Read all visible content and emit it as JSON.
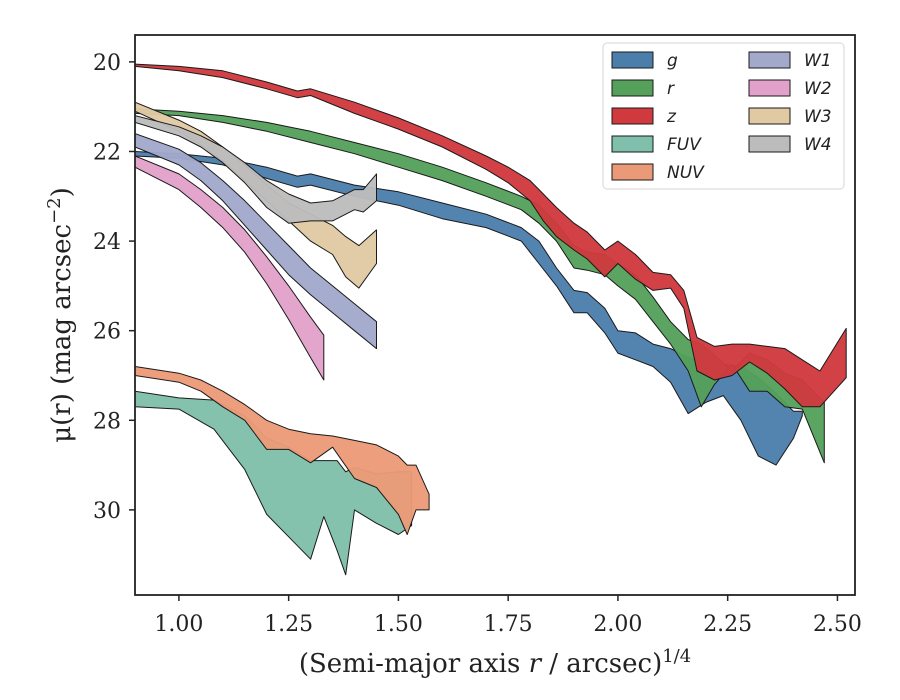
{
  "chart_data": {
    "type": "area",
    "xlabel_text": "(Semi-major axis ",
    "xlabel_var": "r",
    "xlabel_unit": " / arcsec)",
    "xlabel_exp": "1/4",
    "ylabel_text": "μ(r) (mag arcsec",
    "ylabel_exp": "−2",
    "ylabel_close": ")",
    "xlim": [
      0.9,
      2.54
    ],
    "ylim": [
      31.9,
      19.4
    ],
    "y_inverted": true,
    "xticks": [
      1.0,
      1.25,
      1.5,
      1.75,
      2.0,
      2.25,
      2.5
    ],
    "xtick_labels": [
      "1.00",
      "1.25",
      "1.50",
      "1.75",
      "2.00",
      "2.25",
      "2.50"
    ],
    "yticks": [
      20,
      22,
      24,
      26,
      28,
      30
    ],
    "ytick_labels": [
      "20",
      "22",
      "24",
      "26",
      "28",
      "30"
    ],
    "legend_position": "top-right",
    "legend_columns": 2,
    "series": [
      {
        "name": "g",
        "color": "#4c7eac",
        "x": [
          0.9,
          1.0,
          1.1,
          1.2,
          1.27,
          1.3,
          1.4,
          1.5,
          1.6,
          1.7,
          1.78,
          1.82,
          1.86,
          1.9,
          1.93,
          1.97,
          2.0,
          2.04,
          2.08,
          2.12,
          2.16,
          2.2,
          2.24,
          2.28,
          2.32,
          2.36,
          2.4,
          2.42
        ],
        "y_upper": [
          22.0,
          22.05,
          22.15,
          22.35,
          22.55,
          22.5,
          22.75,
          22.9,
          23.15,
          23.4,
          23.7,
          24.0,
          24.6,
          25.1,
          25.15,
          25.5,
          26.0,
          26.05,
          26.3,
          26.4,
          26.6,
          26.7,
          26.75,
          26.8,
          27.05,
          27.4,
          27.8,
          27.8
        ],
        "y_lower": [
          22.1,
          22.15,
          22.3,
          22.6,
          22.8,
          22.75,
          23.0,
          23.2,
          23.5,
          23.7,
          24.0,
          24.5,
          25.0,
          25.6,
          25.6,
          26.05,
          26.5,
          26.65,
          26.8,
          27.15,
          27.85,
          27.6,
          27.45,
          28.0,
          28.8,
          29.0,
          28.4,
          27.9
        ]
      },
      {
        "name": "r",
        "color": "#55a05b",
        "x": [
          0.9,
          1.0,
          1.1,
          1.2,
          1.3,
          1.4,
          1.5,
          1.6,
          1.7,
          1.78,
          1.82,
          1.86,
          1.9,
          1.93,
          1.97,
          2.0,
          2.04,
          2.08,
          2.12,
          2.16,
          2.19,
          2.22,
          2.26,
          2.3,
          2.34,
          2.38,
          2.42,
          2.47
        ],
        "y_upper": [
          21.05,
          21.1,
          21.2,
          21.35,
          21.55,
          21.8,
          22.05,
          22.35,
          22.7,
          23.0,
          23.2,
          23.6,
          24.1,
          24.25,
          24.3,
          24.5,
          24.75,
          25.25,
          25.8,
          26.2,
          26.3,
          26.55,
          26.9,
          26.5,
          26.65,
          26.95,
          27.1,
          27.6
        ],
        "y_lower": [
          21.15,
          21.2,
          21.35,
          21.55,
          21.8,
          22.05,
          22.35,
          22.65,
          23.0,
          23.3,
          23.6,
          24.0,
          24.6,
          24.65,
          24.75,
          25.0,
          25.3,
          25.8,
          26.3,
          26.9,
          27.7,
          27.2,
          26.75,
          27.35,
          27.35,
          27.7,
          27.75,
          28.95
        ]
      },
      {
        "name": "z",
        "color": "#d0393d",
        "x": [
          0.9,
          1.0,
          1.1,
          1.2,
          1.27,
          1.3,
          1.4,
          1.5,
          1.6,
          1.7,
          1.75,
          1.8,
          1.83,
          1.86,
          1.9,
          1.93,
          1.97,
          2.0,
          2.04,
          2.08,
          2.12,
          2.15,
          2.18,
          2.22,
          2.26,
          2.3,
          2.34,
          2.38,
          2.42,
          2.46,
          2.52
        ],
        "y_upper": [
          20.05,
          20.1,
          20.2,
          20.45,
          20.65,
          20.6,
          20.9,
          21.25,
          21.65,
          22.1,
          22.35,
          22.65,
          22.95,
          23.25,
          23.6,
          23.8,
          24.2,
          24.0,
          24.3,
          24.7,
          24.75,
          25.1,
          26.15,
          26.35,
          26.3,
          26.3,
          26.35,
          26.4,
          26.65,
          26.9,
          25.95
        ],
        "y_lower": [
          20.1,
          20.2,
          20.35,
          20.6,
          20.8,
          20.75,
          21.15,
          21.5,
          21.9,
          22.4,
          22.7,
          23.1,
          23.55,
          23.9,
          24.2,
          24.4,
          24.8,
          24.5,
          24.85,
          25.1,
          25.05,
          25.5,
          26.9,
          27.1,
          27.0,
          26.7,
          26.95,
          27.3,
          27.7,
          27.7,
          27.05
        ]
      },
      {
        "name": "FUV",
        "color": "#7fbfab",
        "x": [
          0.9,
          1.0,
          1.08,
          1.15,
          1.2,
          1.25,
          1.3,
          1.33,
          1.36,
          1.38,
          1.4,
          1.45,
          1.5,
          1.53
        ],
        "y_upper": [
          27.35,
          27.5,
          27.55,
          27.9,
          28.4,
          28.6,
          28.9,
          28.9,
          28.9,
          29.15,
          29.05,
          29.2,
          29.15,
          29.15
        ],
        "y_lower": [
          27.7,
          27.75,
          28.2,
          29.1,
          30.1,
          30.6,
          31.1,
          30.15,
          30.9,
          31.45,
          30.0,
          30.3,
          30.55,
          30.35
        ]
      },
      {
        "name": "NUV",
        "color": "#eb9a78",
        "x": [
          0.9,
          1.0,
          1.05,
          1.1,
          1.15,
          1.2,
          1.25,
          1.3,
          1.35,
          1.4,
          1.45,
          1.5,
          1.52,
          1.54,
          1.57
        ],
        "y_upper": [
          26.8,
          26.95,
          27.1,
          27.35,
          27.65,
          28.0,
          28.2,
          28.3,
          28.35,
          28.45,
          28.55,
          28.8,
          29.0,
          29.0,
          29.65
        ],
        "y_lower": [
          27.0,
          27.15,
          27.35,
          27.7,
          28.0,
          28.65,
          28.65,
          28.95,
          28.6,
          29.3,
          29.5,
          30.1,
          30.55,
          30.0,
          30.0
        ]
      },
      {
        "name": "W1",
        "color": "#a2a9cb",
        "x": [
          0.9,
          1.0,
          1.05,
          1.1,
          1.15,
          1.2,
          1.25,
          1.3,
          1.35,
          1.4,
          1.45
        ],
        "y_upper": [
          21.6,
          21.95,
          22.25,
          22.65,
          23.1,
          23.6,
          24.1,
          24.6,
          25.0,
          25.4,
          25.8
        ],
        "y_lower": [
          21.9,
          22.3,
          22.65,
          23.1,
          23.65,
          24.2,
          24.75,
          25.2,
          25.6,
          26.0,
          26.4
        ]
      },
      {
        "name": "W2",
        "color": "#e2a1ca",
        "x": [
          0.9,
          1.0,
          1.05,
          1.1,
          1.15,
          1.2,
          1.25,
          1.3,
          1.33
        ],
        "y_upper": [
          22.1,
          22.5,
          22.85,
          23.25,
          23.75,
          24.35,
          25.0,
          25.7,
          26.1
        ],
        "y_lower": [
          22.35,
          22.85,
          23.25,
          23.7,
          24.25,
          24.95,
          25.75,
          26.6,
          27.1
        ]
      },
      {
        "name": "W3",
        "color": "#e1c9a3",
        "x": [
          0.9,
          1.0,
          1.05,
          1.1,
          1.15,
          1.2,
          1.25,
          1.3,
          1.35,
          1.38,
          1.41,
          1.45
        ],
        "y_upper": [
          20.9,
          21.3,
          21.55,
          21.9,
          22.3,
          22.75,
          23.15,
          23.4,
          23.65,
          23.9,
          24.1,
          23.75
        ],
        "y_lower": [
          21.1,
          21.55,
          21.85,
          22.2,
          22.65,
          23.1,
          23.55,
          24.0,
          24.3,
          24.8,
          25.05,
          24.5
        ]
      },
      {
        "name": "W4",
        "color": "#bcbcbc",
        "x": [
          0.9,
          1.0,
          1.05,
          1.1,
          1.15,
          1.2,
          1.25,
          1.3,
          1.35,
          1.4,
          1.42,
          1.45
        ],
        "y_upper": [
          21.2,
          21.45,
          21.65,
          21.9,
          22.25,
          22.65,
          22.95,
          23.15,
          23.1,
          22.85,
          22.85,
          22.5
        ],
        "y_lower": [
          21.35,
          21.65,
          21.9,
          22.25,
          22.7,
          23.25,
          23.6,
          23.55,
          23.55,
          23.3,
          23.35,
          23.1
        ]
      }
    ]
  }
}
